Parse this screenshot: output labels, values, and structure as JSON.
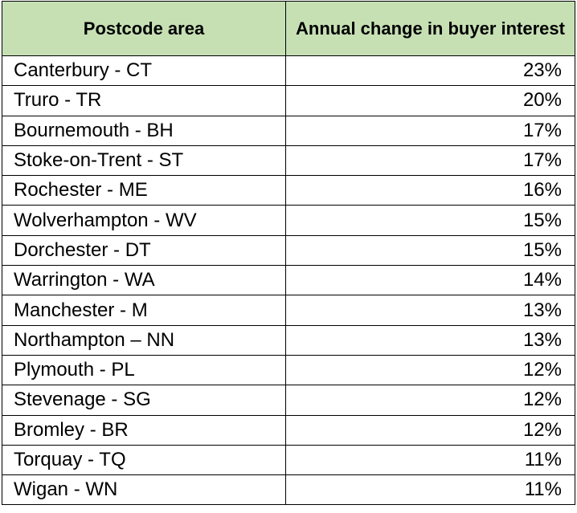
{
  "table": {
    "headers": [
      "Postcode area",
      "Annual change in buyer interest"
    ],
    "rows": [
      {
        "area": "Canterbury - CT",
        "change": "23%"
      },
      {
        "area": "Truro - TR",
        "change": "20%"
      },
      {
        "area": "Bournemouth - BH",
        "change": "17%"
      },
      {
        "area": "Stoke-on-Trent - ST",
        "change": "17%"
      },
      {
        "area": "Rochester - ME",
        "change": "16%"
      },
      {
        "area": "Wolverhampton - WV",
        "change": "15%"
      },
      {
        "area": "Dorchester - DT",
        "change": "15%"
      },
      {
        "area": "Warrington - WA",
        "change": "14%"
      },
      {
        "area": "Manchester - M",
        "change": "13%"
      },
      {
        "area": "Northampton – NN",
        "change": "13%"
      },
      {
        "area": "Plymouth - PL",
        "change": "12%"
      },
      {
        "area": "Stevenage - SG",
        "change": "12%"
      },
      {
        "area": "Bromley - BR",
        "change": "12%"
      },
      {
        "area": "Torquay - TQ",
        "change": "11%"
      },
      {
        "area": "Wigan - WN",
        "change": "11%"
      }
    ]
  },
  "colors": {
    "header_background": "#c6e0b4",
    "border": "#000000"
  }
}
